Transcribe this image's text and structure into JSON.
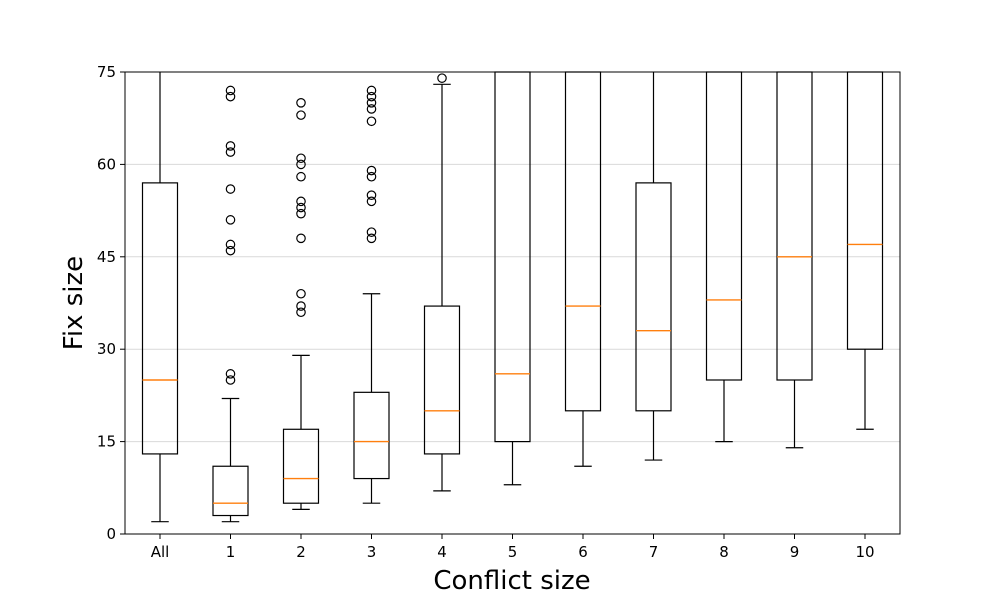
{
  "chart_data": {
    "type": "box",
    "xlabel": "Conflict size",
    "ylabel": "Fix size",
    "ylim": [
      0,
      75
    ],
    "yticks": [
      0,
      15,
      30,
      45,
      60,
      75
    ],
    "grid": "horizontal",
    "colors": {
      "box": "#000000",
      "median": "#ff7f0e",
      "grid": "#d9d9d9"
    },
    "categories": [
      "All",
      "1",
      "2",
      "3",
      "4",
      "5",
      "6",
      "7",
      "8",
      "9",
      "10"
    ],
    "boxes": [
      {
        "category": "All",
        "whisker_low": 2,
        "q1": 13,
        "median": 25,
        "q3": 57,
        "whisker_high": 75,
        "outliers": []
      },
      {
        "category": "1",
        "whisker_low": 2,
        "q1": 3,
        "median": 5,
        "q3": 11,
        "whisker_high": 22,
        "outliers": [
          25,
          26,
          46,
          47,
          51,
          56,
          62,
          63,
          71,
          72
        ]
      },
      {
        "category": "2",
        "whisker_low": 4,
        "q1": 5,
        "median": 9,
        "q3": 17,
        "whisker_high": 29,
        "outliers": [
          36,
          37,
          39,
          48,
          52,
          53,
          54,
          58,
          60,
          61,
          68,
          70
        ]
      },
      {
        "category": "3",
        "whisker_low": 5,
        "q1": 9,
        "median": 15,
        "q3": 23,
        "whisker_high": 39,
        "outliers": [
          48,
          49,
          54,
          55,
          58,
          59,
          67,
          69,
          70,
          71,
          72
        ]
      },
      {
        "category": "4",
        "whisker_low": 7,
        "q1": 13,
        "median": 20,
        "q3": 37,
        "whisker_high": 73,
        "outliers": [
          74
        ]
      },
      {
        "category": "5",
        "whisker_low": 8,
        "q1": 15,
        "median": 26,
        "q3": 75,
        "whisker_high": 75,
        "outliers": []
      },
      {
        "category": "6",
        "whisker_low": 11,
        "q1": 20,
        "median": 37,
        "q3": 75,
        "whisker_high": 75,
        "outliers": []
      },
      {
        "category": "7",
        "whisker_low": 12,
        "q1": 20,
        "median": 33,
        "q3": 57,
        "whisker_high": 75,
        "outliers": []
      },
      {
        "category": "8",
        "whisker_low": 15,
        "q1": 25,
        "median": 38,
        "q3": 75,
        "whisker_high": 75,
        "outliers": []
      },
      {
        "category": "9",
        "whisker_low": 14,
        "q1": 25,
        "median": 45,
        "q3": 75,
        "whisker_high": 75,
        "outliers": []
      },
      {
        "category": "10",
        "whisker_low": 17,
        "q1": 30,
        "median": 47,
        "q3": 75,
        "whisker_high": 75,
        "outliers": []
      }
    ]
  }
}
